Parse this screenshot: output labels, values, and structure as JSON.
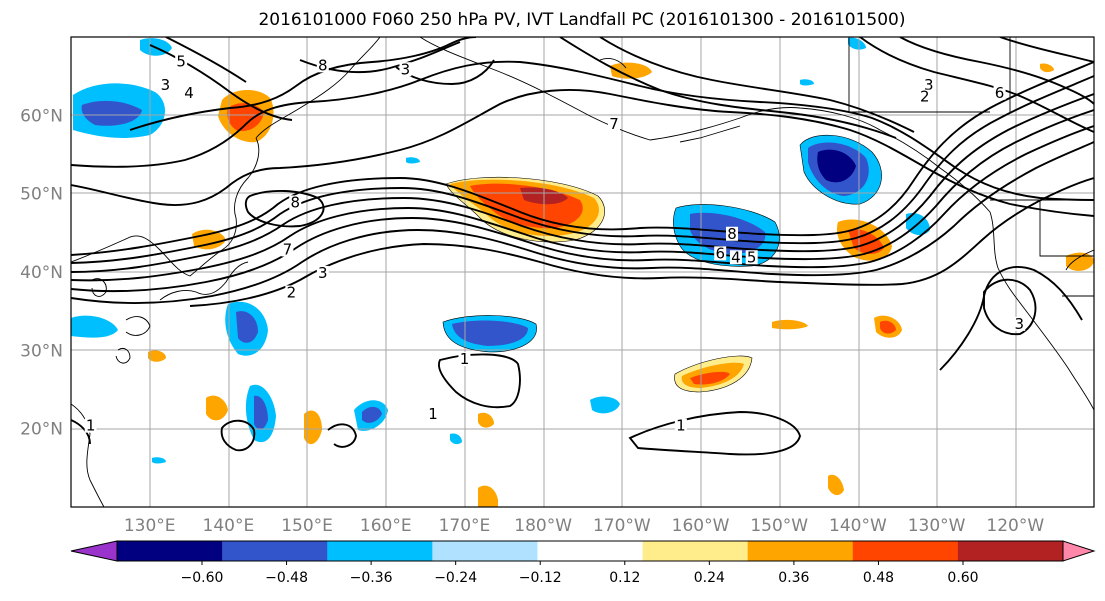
{
  "title": "2016101000 F060 250 hPa PV, IVT Landfall PC (2016101300 - 2016101500)",
  "map": {
    "lat_range": [
      10,
      70
    ],
    "lon_range": [
      120,
      250
    ],
    "lat_ticks": [
      {
        "label": "60°N",
        "lat": 60
      },
      {
        "label": "50°N",
        "lat": 50
      },
      {
        "label": "40°N",
        "lat": 40
      },
      {
        "label": "30°N",
        "lat": 30
      },
      {
        "label": "20°N",
        "lat": 20
      }
    ],
    "lon_ticks": [
      {
        "label": "130°E",
        "lon": 130
      },
      {
        "label": "140°E",
        "lon": 140
      },
      {
        "label": "150°E",
        "lon": 150
      },
      {
        "label": "160°E",
        "lon": 160
      },
      {
        "label": "170°E",
        "lon": 170
      },
      {
        "label": "180°W",
        "lon": 180
      },
      {
        "label": "170°W",
        "lon": 190
      },
      {
        "label": "160°W",
        "lon": 200
      },
      {
        "label": "150°W",
        "lon": 210
      },
      {
        "label": "140°W",
        "lon": 220
      },
      {
        "label": "130°W",
        "lon": 230
      },
      {
        "label": "120°W",
        "lon": 240
      }
    ],
    "contour_labels": [
      {
        "text": "5",
        "lon": 134,
        "lat": 66.5
      },
      {
        "text": "3",
        "lon": 132,
        "lat": 63.5
      },
      {
        "text": "4",
        "lon": 135,
        "lat": 62.5
      },
      {
        "text": "8",
        "lon": 152,
        "lat": 66
      },
      {
        "text": "3",
        "lon": 162.5,
        "lat": 65.5
      },
      {
        "text": "7",
        "lon": 189,
        "lat": 58.5
      },
      {
        "text": "8",
        "lon": 148.5,
        "lat": 48.5
      },
      {
        "text": "7",
        "lon": 147.5,
        "lat": 42.5
      },
      {
        "text": "3",
        "lon": 152,
        "lat": 39.5
      },
      {
        "text": "2",
        "lon": 148,
        "lat": 37
      },
      {
        "text": "8",
        "lon": 204,
        "lat": 44.5
      },
      {
        "text": "6",
        "lon": 202.5,
        "lat": 42
      },
      {
        "text": "4",
        "lon": 204.5,
        "lat": 41.5
      },
      {
        "text": "5",
        "lon": 206.5,
        "lat": 41.5
      },
      {
        "text": "1",
        "lon": 170,
        "lat": 28.5
      },
      {
        "text": "1",
        "lon": 166,
        "lat": 21.5
      },
      {
        "text": "1",
        "lon": 197.5,
        "lat": 20
      },
      {
        "text": "1",
        "lon": 122.5,
        "lat": 20
      },
      {
        "text": "3",
        "lon": 229,
        "lat": 63.5
      },
      {
        "text": "2",
        "lon": 228.5,
        "lat": 62
      },
      {
        "text": "6",
        "lon": 238,
        "lat": 62.5
      },
      {
        "text": "3",
        "lon": 240.5,
        "lat": 33
      }
    ]
  },
  "colorbar": {
    "levels": [
      -0.6,
      -0.48,
      -0.36,
      -0.24,
      -0.12,
      0.12,
      0.24,
      0.36,
      0.48,
      0.6
    ],
    "labels": [
      "−0.60",
      "−0.48",
      "−0.36",
      "−0.24",
      "−0.12",
      "0.12",
      "0.24",
      "0.36",
      "0.48",
      "0.60"
    ],
    "colors": [
      "#9933cc",
      "#000080",
      "#3355cc",
      "#00bfff",
      "#b0e2ff",
      "#ffffff",
      "#ffec8b",
      "#ffa500",
      "#ff4500",
      "#b22222",
      "#ff88aa"
    ]
  }
}
